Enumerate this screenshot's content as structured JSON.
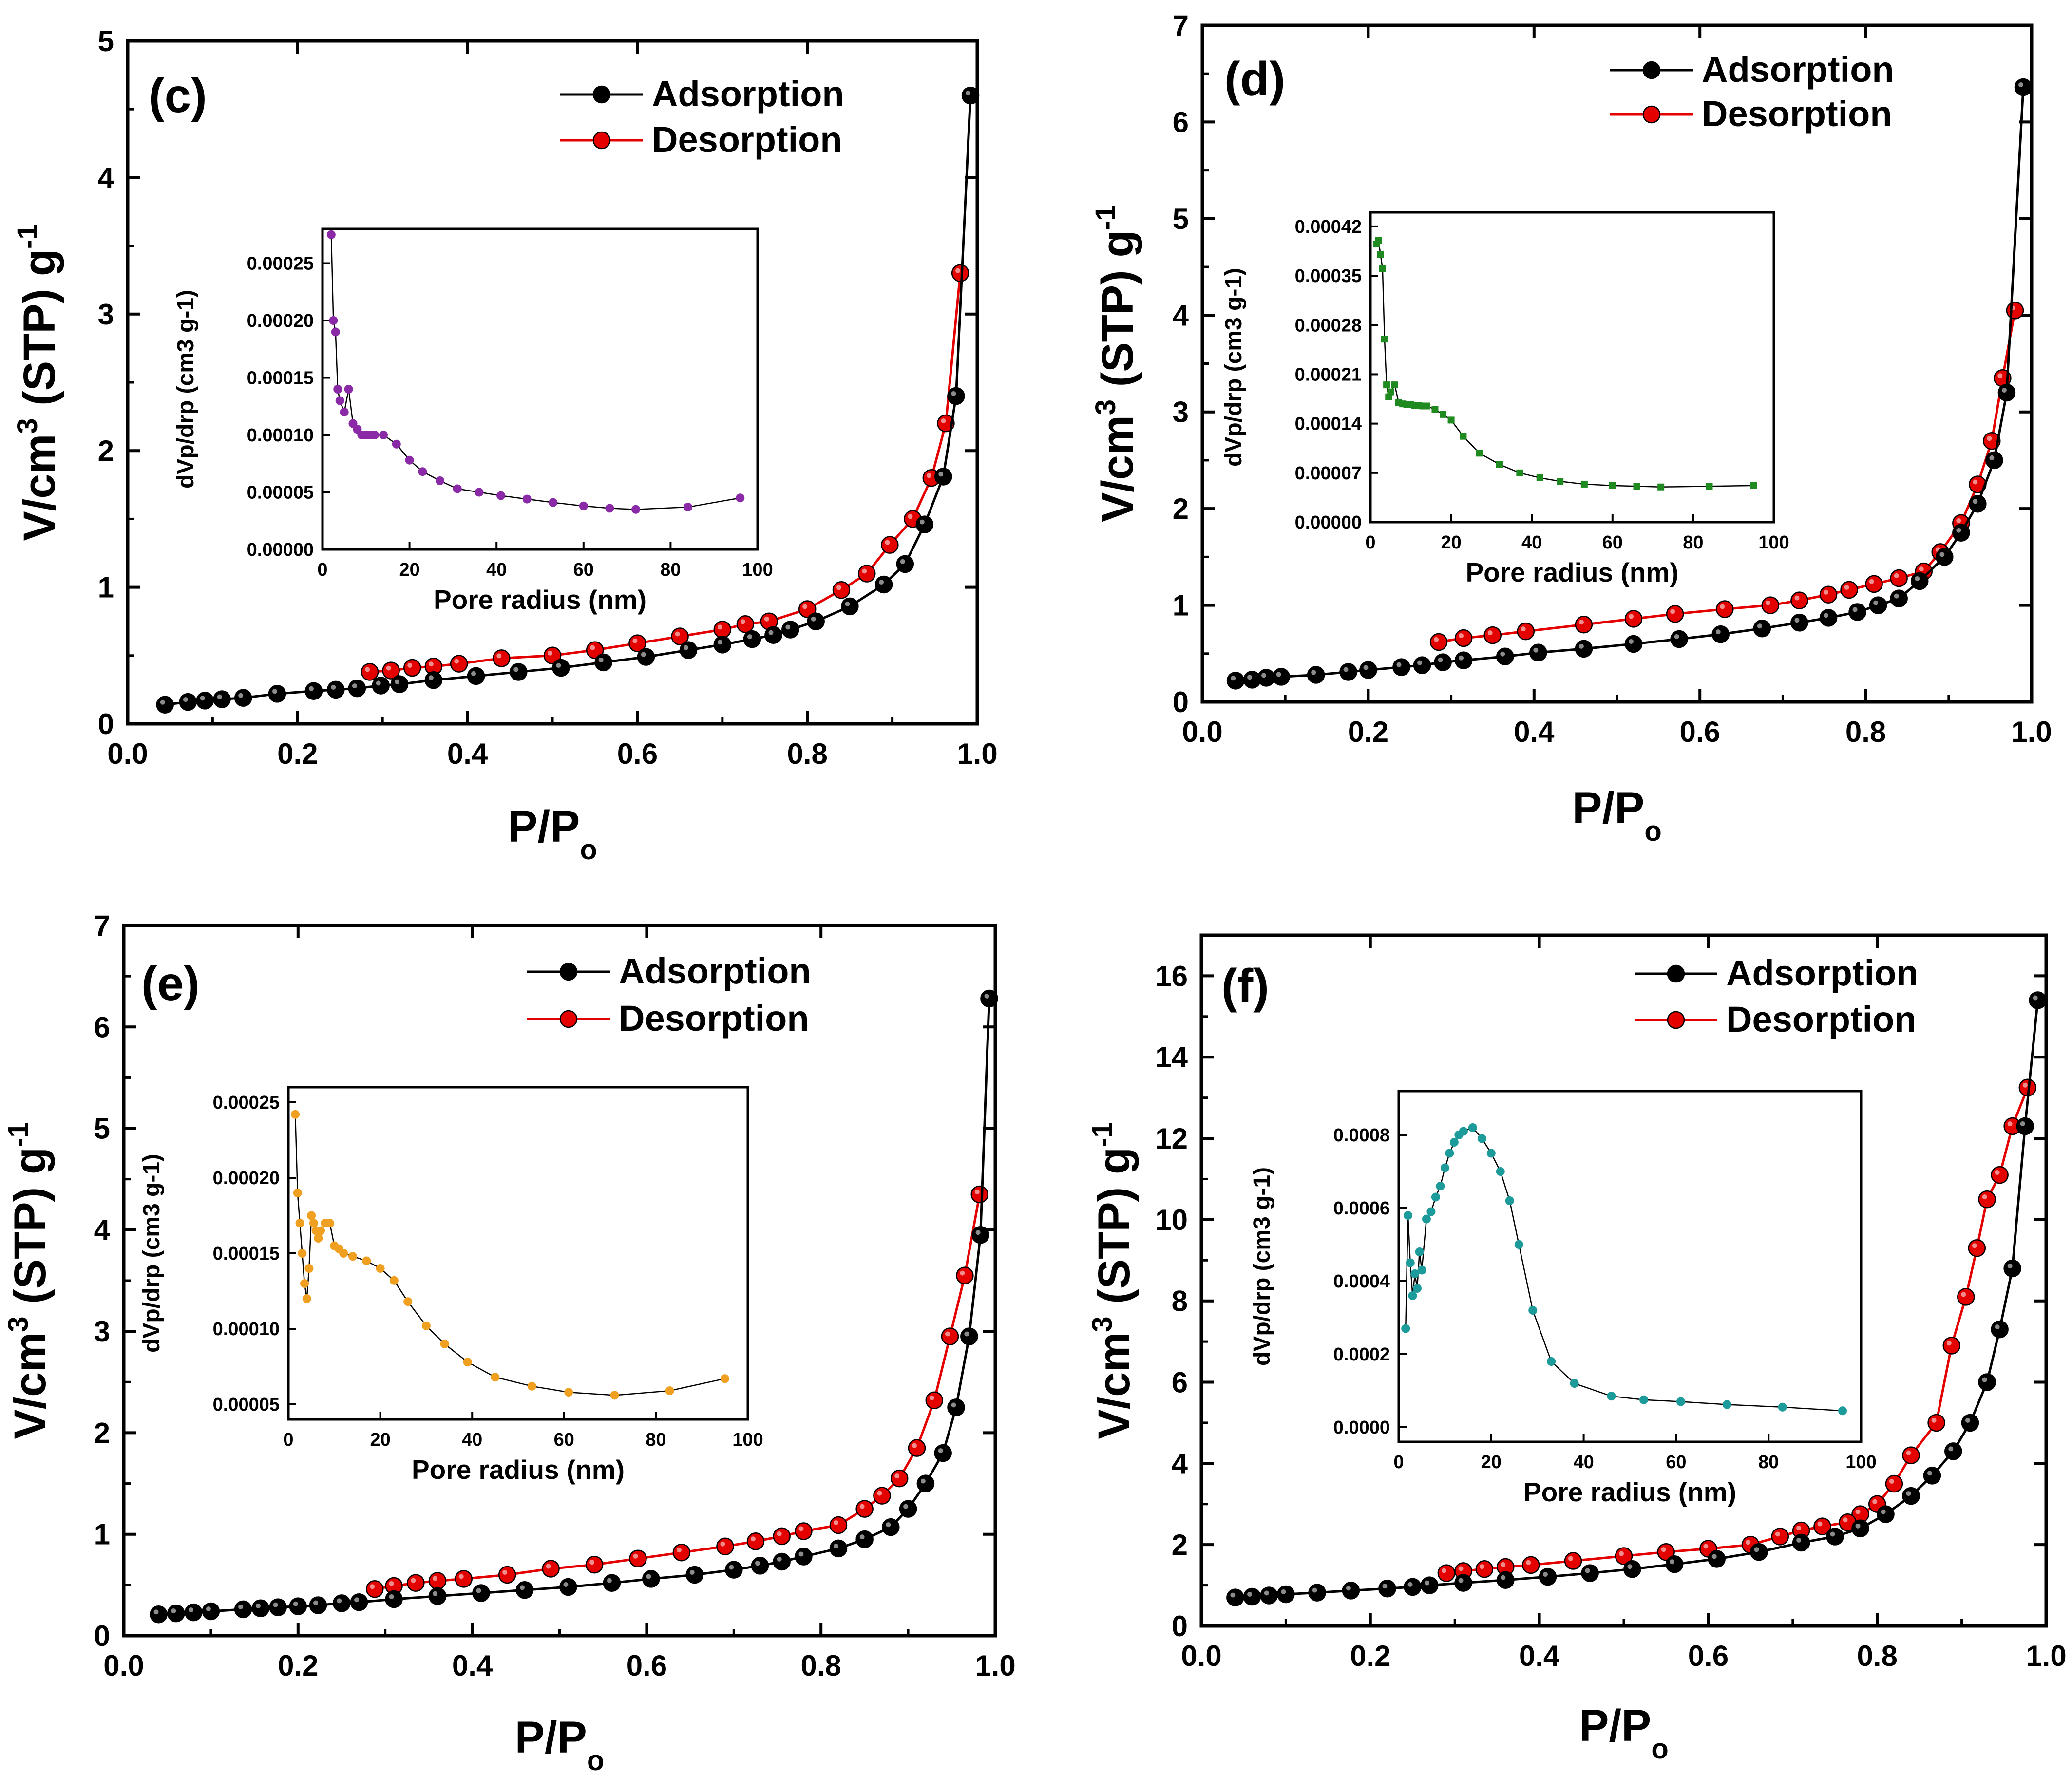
{
  "figure_description": "Four-panel figure of nitrogen adsorption-desorption isotherms with pore size distribution insets",
  "colors": {
    "adsorption": "#000000",
    "desorption": "#e50000",
    "inset_c": "#8b2aa6",
    "inset_d": "#1f8a1f",
    "inset_e": "#f0a020",
    "inset_f": "#1d9a9a"
  },
  "chart_data": [
    {
      "panel": "(c)",
      "type": "line",
      "xlabel": "P/P",
      "xlabel_sub": "o",
      "ylabel": "V/cm",
      "ylabel_sup": "3",
      "ylabel_mid": " (STP) g",
      "ylabel_sup2": "-1",
      "xlim": [
        0,
        1.0
      ],
      "ylim": [
        0,
        5
      ],
      "xticks": [
        "0.0",
        "0.2",
        "0.4",
        "0.6",
        "0.8",
        "1.0"
      ],
      "yticks": [
        "0",
        "1",
        "2",
        "3",
        "4",
        "5"
      ],
      "legend": [
        "Adsorption",
        "Desorption"
      ],
      "series": [
        {
          "name": "Adsorption",
          "x": [
            0.044,
            0.071,
            0.091,
            0.111,
            0.136,
            0.176,
            0.219,
            0.245,
            0.27,
            0.298,
            0.32,
            0.36,
            0.41,
            0.46,
            0.51,
            0.56,
            0.61,
            0.66,
            0.7,
            0.735,
            0.76,
            0.78,
            0.81,
            0.85,
            0.89,
            0.915,
            0.938,
            0.96,
            0.975,
            0.992
          ],
          "y": [
            0.14,
            0.16,
            0.17,
            0.18,
            0.19,
            0.22,
            0.24,
            0.25,
            0.26,
            0.28,
            0.29,
            0.32,
            0.35,
            0.38,
            0.41,
            0.45,
            0.49,
            0.54,
            0.58,
            0.62,
            0.65,
            0.69,
            0.75,
            0.86,
            1.02,
            1.17,
            1.46,
            1.81,
            2.4,
            4.6
          ]
        },
        {
          "name": "Desorption",
          "x": [
            0.98,
            0.963,
            0.946,
            0.924,
            0.897,
            0.87,
            0.84,
            0.8,
            0.755,
            0.727,
            0.7,
            0.65,
            0.6,
            0.55,
            0.5,
            0.44,
            0.39,
            0.36,
            0.335,
            0.31,
            0.285
          ],
          "y": [
            3.3,
            2.2,
            1.8,
            1.5,
            1.31,
            1.1,
            0.98,
            0.84,
            0.75,
            0.73,
            0.69,
            0.64,
            0.59,
            0.54,
            0.5,
            0.48,
            0.44,
            0.42,
            0.41,
            0.39,
            0.38
          ]
        }
      ],
      "inset": {
        "xlabel": "Pore radius (nm)",
        "ylabel": "dVp/drp (cm3 g-1)",
        "xlim": [
          0,
          100
        ],
        "ylim": [
          0,
          0.00028
        ],
        "xticks": [
          "0",
          "20",
          "40",
          "60",
          "80",
          "100"
        ],
        "yticks": [
          "0.00000",
          "0.00005",
          "0.00010",
          "0.00015",
          "0.00020",
          "0.00025"
        ],
        "x": [
          2,
          2.5,
          3,
          3.5,
          4,
          5,
          6,
          7,
          8,
          9,
          10,
          11,
          12,
          14,
          17,
          20,
          23,
          27,
          31,
          36,
          41,
          47,
          53,
          60,
          66,
          72,
          84,
          96
        ],
        "y": [
          0.000275,
          0.0002,
          0.00019,
          0.00014,
          0.00013,
          0.00012,
          0.00014,
          0.00011,
          0.000105,
          0.0001,
          0.0001,
          0.0001,
          0.0001,
          0.0001,
          9.2e-05,
          7.8e-05,
          6.8e-05,
          6e-05,
          5.3e-05,
          5e-05,
          4.7e-05,
          4.4e-05,
          4.1e-05,
          3.8e-05,
          3.6e-05,
          3.5e-05,
          3.7e-05,
          4.5e-05
        ]
      }
    },
    {
      "panel": "(d)",
      "type": "line",
      "xlabel": "P/P",
      "xlabel_sub": "o",
      "ylabel": "V/cm",
      "ylabel_sup": "3",
      "ylabel_mid": " (STP) g",
      "ylabel_sup2": "-1",
      "xlim": [
        0,
        1.0
      ],
      "ylim": [
        0,
        7
      ],
      "xticks": [
        "0.0",
        "0.2",
        "0.4",
        "0.6",
        "0.8",
        "1.0"
      ],
      "yticks": [
        "0",
        "1",
        "2",
        "3",
        "4",
        "5",
        "6",
        "7"
      ],
      "legend": [
        "Adsorption",
        "Desorption"
      ],
      "series": [
        {
          "name": "Adsorption",
          "x": [
            0.04,
            0.06,
            0.077,
            0.095,
            0.137,
            0.176,
            0.2,
            0.24,
            0.265,
            0.29,
            0.315,
            0.365,
            0.405,
            0.46,
            0.52,
            0.575,
            0.625,
            0.675,
            0.72,
            0.755,
            0.79,
            0.815,
            0.84,
            0.865,
            0.895,
            0.915,
            0.935,
            0.955,
            0.97,
            0.99
          ],
          "y": [
            0.22,
            0.23,
            0.25,
            0.26,
            0.28,
            0.31,
            0.33,
            0.36,
            0.38,
            0.41,
            0.43,
            0.47,
            0.51,
            0.55,
            0.6,
            0.65,
            0.7,
            0.76,
            0.82,
            0.87,
            0.93,
            1.0,
            1.07,
            1.25,
            1.5,
            1.75,
            2.05,
            2.5,
            3.2,
            6.36
          ]
        },
        {
          "name": "Desorption",
          "x": [
            0.98,
            0.965,
            0.952,
            0.935,
            0.915,
            0.89,
            0.87,
            0.84,
            0.81,
            0.78,
            0.755,
            0.72,
            0.685,
            0.63,
            0.57,
            0.52,
            0.46,
            0.39,
            0.35,
            0.315,
            0.285
          ],
          "y": [
            4.05,
            3.35,
            2.7,
            2.25,
            1.85,
            1.55,
            1.35,
            1.28,
            1.22,
            1.16,
            1.11,
            1.05,
            1.0,
            0.96,
            0.91,
            0.86,
            0.8,
            0.73,
            0.69,
            0.66,
            0.62
          ]
        }
      ],
      "inset": {
        "xlabel": "Pore radius (nm)",
        "ylabel": "dVp/drp (cm3 g-1)",
        "xlim": [
          0,
          100
        ],
        "ylim": [
          0,
          0.00044
        ],
        "xticks": [
          "0",
          "20",
          "40",
          "60",
          "80",
          "100"
        ],
        "yticks": [
          "0.00000",
          "0.00007",
          "0.00014",
          "0.00021",
          "0.00028",
          "0.00035",
          "0.00042"
        ],
        "x": [
          1.5,
          2,
          2.5,
          3,
          3.5,
          4,
          4.5,
          5,
          6,
          7,
          8,
          9,
          10,
          11,
          12,
          13,
          14,
          16,
          18,
          20,
          23,
          27,
          32,
          37,
          42,
          47,
          53,
          60,
          66,
          72,
          84,
          95
        ],
        "y": [
          0.000395,
          0.0004,
          0.00038,
          0.00036,
          0.00026,
          0.000195,
          0.000178,
          0.000185,
          0.000195,
          0.00017,
          0.000168,
          0.000167,
          0.000167,
          0.000166,
          0.000166,
          0.000165,
          0.000165,
          0.00016,
          0.000153,
          0.000145,
          0.000122,
          9.8e-05,
          8.2e-05,
          7e-05,
          6.3e-05,
          5.8e-05,
          5.4e-05,
          5.2e-05,
          5.1e-05,
          5e-05,
          5.1e-05,
          5.2e-05
        ]
      }
    },
    {
      "panel": "(e)",
      "type": "line",
      "xlabel": "P/P",
      "xlabel_sub": "o",
      "ylabel": "V/cm",
      "ylabel_sup": "3",
      "ylabel_mid": " (STP) g",
      "ylabel_sup2": "-1",
      "xlim": [
        0,
        1.0
      ],
      "ylim": [
        0,
        7
      ],
      "xticks": [
        "0.0",
        "0.2",
        "0.4",
        "0.6",
        "0.8",
        "1.0"
      ],
      "yticks": [
        "0",
        "1",
        "2",
        "3",
        "4",
        "5",
        "6",
        "7"
      ],
      "legend": [
        "Adsorption",
        "Desorption"
      ],
      "series": [
        {
          "name": "Adsorption",
          "x": [
            0.04,
            0.06,
            0.08,
            0.1,
            0.137,
            0.157,
            0.177,
            0.2,
            0.223,
            0.25,
            0.27,
            0.31,
            0.36,
            0.41,
            0.46,
            0.51,
            0.56,
            0.605,
            0.655,
            0.7,
            0.73,
            0.755,
            0.78,
            0.82,
            0.85,
            0.88,
            0.9,
            0.92,
            0.94,
            0.955,
            0.97,
            0.983,
            0.993
          ],
          "y": [
            0.21,
            0.22,
            0.23,
            0.24,
            0.26,
            0.27,
            0.28,
            0.29,
            0.3,
            0.32,
            0.33,
            0.36,
            0.39,
            0.42,
            0.45,
            0.48,
            0.52,
            0.56,
            0.6,
            0.65,
            0.69,
            0.73,
            0.78,
            0.86,
            0.95,
            1.07,
            1.25,
            1.5,
            1.8,
            2.25,
            2.95,
            3.95,
            6.28
          ]
        },
        {
          "name": "Desorption",
          "x": [
            0.982,
            0.965,
            0.948,
            0.93,
            0.91,
            0.89,
            0.87,
            0.85,
            0.82,
            0.78,
            0.755,
            0.725,
            0.69,
            0.64,
            0.59,
            0.54,
            0.49,
            0.44,
            0.39,
            0.36,
            0.335,
            0.31,
            0.288
          ],
          "y": [
            4.35,
            3.55,
            2.95,
            2.32,
            1.85,
            1.55,
            1.38,
            1.25,
            1.09,
            1.03,
            0.98,
            0.93,
            0.88,
            0.82,
            0.76,
            0.7,
            0.66,
            0.6,
            0.56,
            0.54,
            0.52,
            0.49,
            0.46
          ]
        }
      ],
      "inset": {
        "xlabel": "Pore radius (nm)",
        "ylabel": "dVp/drp (cm3 g-1)",
        "xlim": [
          0,
          100
        ],
        "ylim": [
          4e-05,
          0.00026
        ],
        "xticks": [
          "0",
          "20",
          "40",
          "60",
          "80",
          "100"
        ],
        "yticks": [
          "0.00005",
          "0.00010",
          "0.00015",
          "0.00020",
          "0.00025"
        ],
        "x": [
          1.5,
          2,
          2.5,
          3,
          3.5,
          4,
          4.5,
          5,
          5.5,
          6,
          6.5,
          7,
          8,
          9,
          10,
          11,
          12,
          14,
          17,
          20,
          23,
          26,
          30,
          34,
          39,
          45,
          53,
          61,
          71,
          83,
          95
        ],
        "y": [
          0.000242,
          0.00019,
          0.00017,
          0.00015,
          0.00013,
          0.00012,
          0.00014,
          0.000175,
          0.00017,
          0.000165,
          0.00016,
          0.000165,
          0.00017,
          0.00017,
          0.000155,
          0.000153,
          0.00015,
          0.000148,
          0.000145,
          0.00014,
          0.000132,
          0.000118,
          0.000102,
          9e-05,
          7.8e-05,
          6.8e-05,
          6.2e-05,
          5.8e-05,
          5.6e-05,
          5.9e-05,
          6.7e-05
        ]
      }
    },
    {
      "panel": "(f)",
      "type": "line",
      "xlabel": "P/P",
      "xlabel_sub": "o",
      "ylabel": "V/cm",
      "ylabel_sup": "3",
      "ylabel_mid": " (STP) g",
      "ylabel_sup2": "-1",
      "xlim": [
        0,
        1.0
      ],
      "ylim": [
        0,
        17
      ],
      "xticks": [
        "0.0",
        "0.2",
        "0.4",
        "0.6",
        "0.8",
        "1.0"
      ],
      "yticks": [
        "0",
        "2",
        "4",
        "6",
        "8",
        "10",
        "12",
        "14",
        "16"
      ],
      "legend": [
        "Adsorption",
        "Desorption"
      ],
      "series": [
        {
          "name": "Adsorption",
          "x": [
            0.04,
            0.06,
            0.08,
            0.1,
            0.137,
            0.177,
            0.22,
            0.25,
            0.27,
            0.31,
            0.36,
            0.41,
            0.46,
            0.51,
            0.56,
            0.61,
            0.66,
            0.71,
            0.75,
            0.78,
            0.81,
            0.84,
            0.865,
            0.89,
            0.91,
            0.93,
            0.945,
            0.96,
            0.975,
            0.99
          ],
          "y": [
            0.7,
            0.72,
            0.75,
            0.78,
            0.82,
            0.87,
            0.92,
            0.96,
            1.0,
            1.06,
            1.13,
            1.21,
            1.3,
            1.4,
            1.52,
            1.65,
            1.82,
            2.05,
            2.2,
            2.4,
            2.75,
            3.2,
            3.7,
            4.3,
            5.0,
            6.0,
            7.3,
            8.8,
            12.3,
            15.4
          ]
        },
        {
          "name": "Desorption",
          "x": [
            0.978,
            0.96,
            0.945,
            0.93,
            0.918,
            0.905,
            0.888,
            0.87,
            0.84,
            0.82,
            0.8,
            0.78,
            0.765,
            0.735,
            0.71,
            0.685,
            0.65,
            0.6,
            0.55,
            0.5,
            0.44,
            0.39,
            0.36,
            0.335,
            0.31,
            0.29
          ],
          "y": [
            13.25,
            12.3,
            11.1,
            10.5,
            9.3,
            8.1,
            6.9,
            5.0,
            4.2,
            3.5,
            3.0,
            2.75,
            2.55,
            2.45,
            2.35,
            2.2,
            2.0,
            1.9,
            1.82,
            1.72,
            1.6,
            1.5,
            1.45,
            1.4,
            1.35,
            1.3
          ]
        }
      ],
      "inset": {
        "xlabel": "Pore radius (nm)",
        "ylabel": "dVp/drp (cm3 g-1)",
        "xlim": [
          0,
          100
        ],
        "ylim": [
          -4e-05,
          0.00092
        ],
        "xticks": [
          "0",
          "20",
          "40",
          "60",
          "80",
          "100"
        ],
        "yticks": [
          "0.0000",
          "0.0002",
          "0.0004",
          "0.0006",
          "0.0008"
        ],
        "x": [
          1.5,
          2,
          2.5,
          3,
          3.5,
          4,
          4.5,
          5,
          6,
          7,
          8,
          9,
          10,
          11,
          12,
          13,
          14,
          16,
          18,
          20,
          22,
          24,
          26,
          29,
          33,
          38,
          46,
          53,
          61,
          71,
          83,
          96
        ],
        "y": [
          0.00027,
          0.00058,
          0.00045,
          0.00036,
          0.00042,
          0.00038,
          0.00048,
          0.00043,
          0.00057,
          0.00059,
          0.00063,
          0.00066,
          0.00071,
          0.00075,
          0.00078,
          0.0008,
          0.00081,
          0.00082,
          0.00079,
          0.00075,
          0.0007,
          0.00062,
          0.0005,
          0.00032,
          0.00018,
          0.00012,
          8.5e-05,
          7.5e-05,
          7e-05,
          6.2e-05,
          5.5e-05,
          4.5e-05
        ]
      }
    }
  ]
}
